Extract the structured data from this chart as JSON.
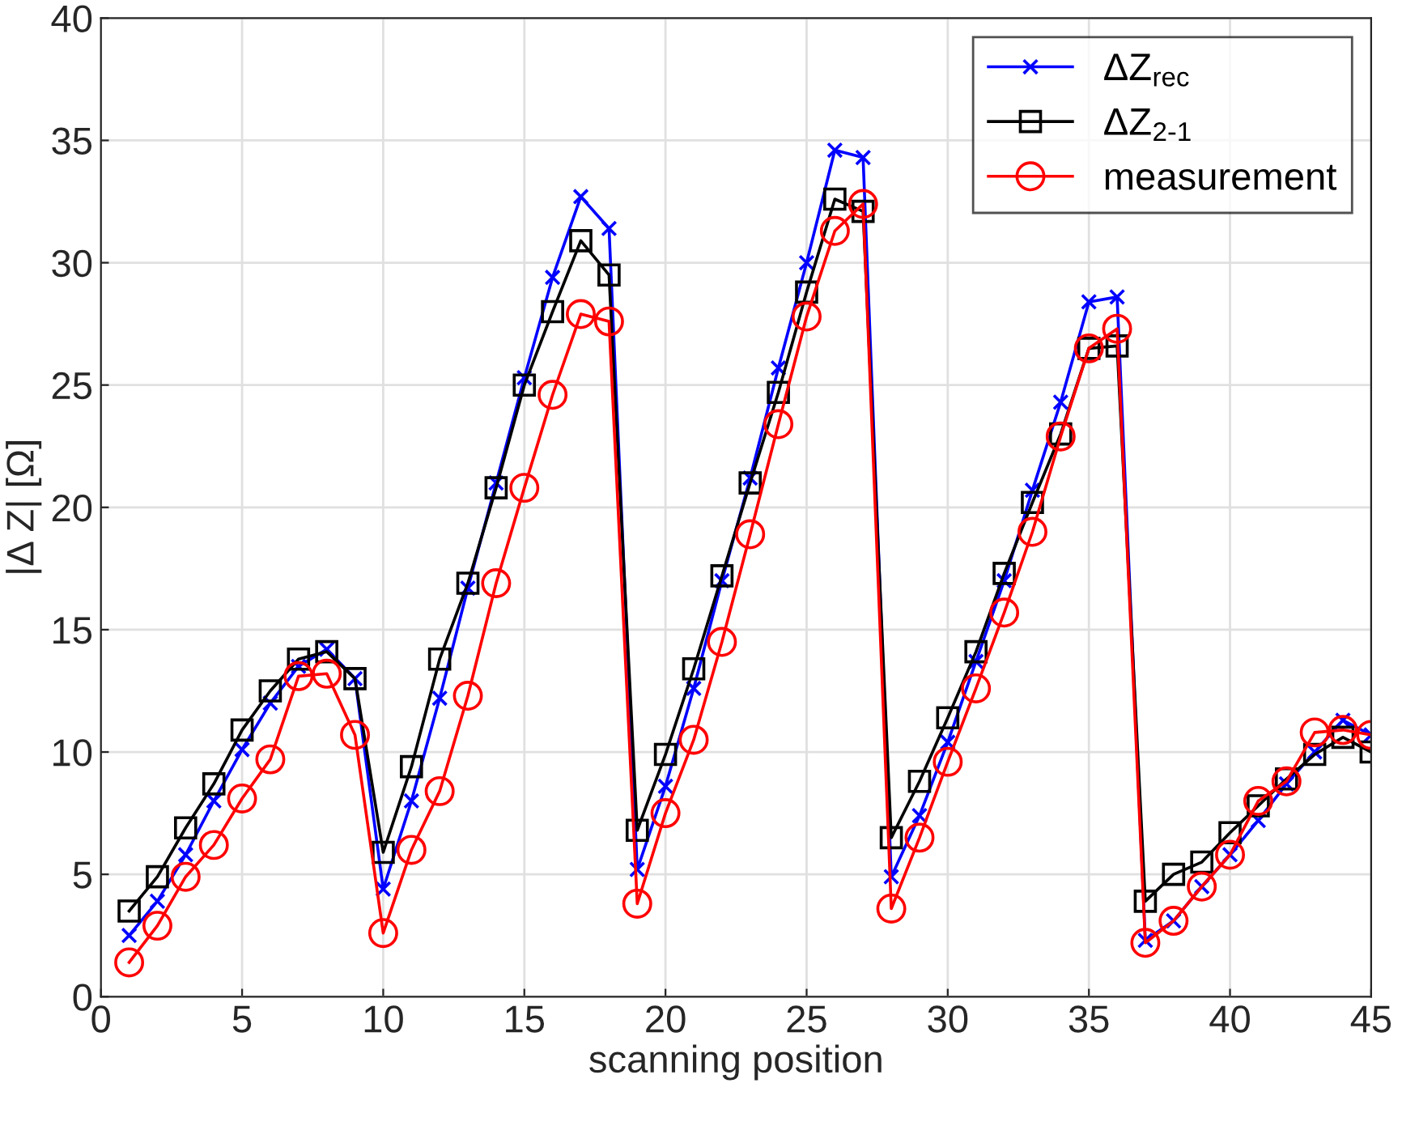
{
  "chart_data": {
    "type": "line",
    "xlabel": "scanning position",
    "ylabel": "|Δ Z| [Ω]",
    "x": [
      1,
      2,
      3,
      4,
      5,
      6,
      7,
      8,
      9,
      10,
      11,
      12,
      13,
      14,
      15,
      16,
      17,
      18,
      19,
      20,
      21,
      22,
      23,
      24,
      25,
      26,
      27,
      28,
      29,
      30,
      31,
      32,
      33,
      34,
      35,
      36,
      37,
      38,
      39,
      40,
      41,
      42,
      43,
      44,
      45
    ],
    "series": [
      {
        "name": "ΔZ$_{rec}$",
        "color": "#0000ff",
        "marker": "cross",
        "values": [
          2.5,
          3.9,
          5.8,
          8.0,
          10.1,
          12.0,
          13.5,
          14.2,
          13.0,
          4.4,
          8.0,
          12.2,
          16.7,
          21.0,
          25.3,
          29.4,
          32.7,
          31.4,
          5.2,
          8.6,
          12.6,
          17.0,
          21.2,
          25.7,
          30.0,
          34.6,
          34.3,
          4.9,
          7.4,
          10.4,
          13.7,
          17.0,
          20.7,
          24.3,
          28.4,
          28.6,
          2.3,
          3.1,
          4.5,
          5.8,
          7.2,
          8.7,
          10.0,
          11.3,
          10.7
        ]
      },
      {
        "name": "ΔZ$_{2-1}$",
        "color": "#000000",
        "marker": "square",
        "values": [
          3.5,
          4.9,
          6.9,
          8.7,
          10.9,
          12.5,
          13.8,
          14.1,
          13.0,
          5.9,
          9.4,
          13.8,
          16.9,
          20.8,
          25.0,
          28.0,
          30.9,
          29.5,
          6.8,
          9.9,
          13.4,
          17.2,
          21.0,
          24.7,
          28.8,
          32.6,
          32.1,
          6.5,
          8.8,
          11.4,
          14.1,
          17.3,
          20.2,
          23.0,
          26.5,
          26.6,
          3.9,
          5.0,
          5.5,
          6.7,
          7.8,
          8.9,
          9.9,
          10.6,
          10.0
        ]
      },
      {
        "name": "measurement",
        "color": "#ff0000",
        "marker": "circle",
        "values": [
          1.4,
          2.9,
          4.9,
          6.2,
          8.1,
          9.7,
          13.1,
          13.2,
          10.7,
          2.6,
          6.0,
          8.4,
          12.3,
          16.9,
          20.8,
          24.6,
          27.9,
          27.6,
          3.8,
          7.5,
          10.5,
          14.5,
          18.9,
          23.4,
          27.8,
          31.3,
          32.4,
          3.6,
          6.5,
          9.6,
          12.6,
          15.7,
          19.0,
          22.9,
          26.5,
          27.3,
          2.2,
          3.1,
          4.5,
          5.8,
          8.0,
          8.8,
          10.8,
          10.9,
          10.7
        ]
      }
    ],
    "xlim": [
      0,
      45
    ],
    "xticks": [
      0,
      5,
      10,
      15,
      20,
      25,
      30,
      35,
      40,
      45
    ],
    "ylim": [
      0,
      40
    ],
    "yticks": [
      0,
      5,
      10,
      15,
      20,
      25,
      30,
      35,
      40
    ],
    "grid": true,
    "legend": "top right",
    "line_style": "solid"
  }
}
